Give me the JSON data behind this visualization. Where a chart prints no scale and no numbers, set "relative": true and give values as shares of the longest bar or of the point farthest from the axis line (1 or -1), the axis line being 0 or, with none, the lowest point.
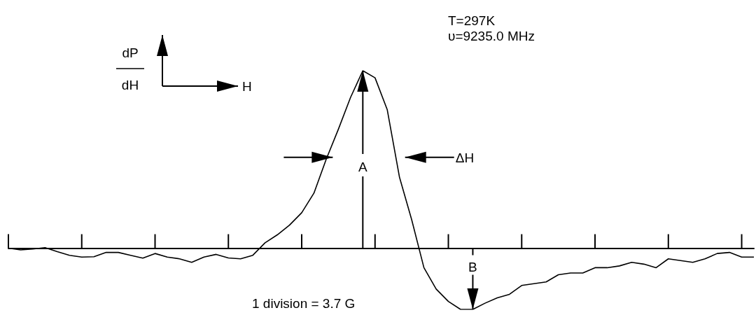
{
  "chart_data": {
    "type": "line",
    "relative": true,
    "color": "#000000",
    "grid": false,
    "marker": "none",
    "line_style": "solid",
    "categories": [
      null,
      null,
      null,
      null,
      null,
      null,
      null,
      null,
      null,
      null,
      null,
      null,
      null,
      null,
      null,
      null,
      null,
      null,
      null,
      null,
      null,
      null,
      null,
      null,
      null,
      null,
      null,
      null,
      null,
      null,
      null,
      null,
      null,
      null,
      null,
      null,
      null,
      null,
      null,
      null,
      null,
      null,
      null,
      null,
      null,
      null,
      null,
      null,
      null,
      null,
      null,
      null,
      null,
      null,
      null,
      null,
      null,
      null,
      null,
      null,
      null,
      null
    ],
    "values": [
      0,
      -0.01,
      -0.005,
      0.003,
      -0.02,
      -0.04,
      -0.05,
      -0.048,
      -0.024,
      -0.024,
      -0.04,
      -0.056,
      -0.03,
      -0.05,
      -0.06,
      -0.08,
      -0.05,
      -0.035,
      -0.055,
      -0.06,
      -0.04,
      0.03,
      0.075,
      0.13,
      0.2,
      0.31,
      0.5,
      0.67,
      0.85,
      1,
      0.96,
      0.78,
      0.4,
      0.16,
      -0.11,
      -0.23,
      -0.3,
      -0.345,
      -0.345,
      -0.31,
      -0.28,
      -0.26,
      -0.21,
      -0.2,
      -0.19,
      -0.15,
      -0.14,
      -0.14,
      -0.11,
      -0.11,
      -0.1,
      -0.08,
      -0.09,
      -0.11,
      -0.06,
      -0.07,
      -0.08,
      -0.06,
      -0.03,
      -0.024,
      -0.05,
      -0.05
    ],
    "annotations": [
      "T=297K",
      "υ=9235.0 MHz",
      "dP",
      "dH",
      "H",
      "A",
      "ΔH",
      "B",
      "1 division = 3.7 G"
    ]
  }
}
